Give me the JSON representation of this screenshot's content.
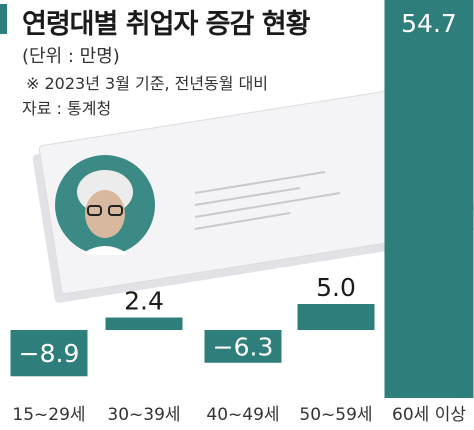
{
  "header": {
    "title": "연령대별 취업자 증감 현황",
    "unit": "(단위 : 만명)",
    "note": "※ 2023년 3월 기준, 전년동월 대비",
    "source": "자료 : 통계청"
  },
  "colors": {
    "bar": "#2e7f7b",
    "illustration_paper": "#f4f4f6",
    "illustration_avatar": "#3c8a86"
  },
  "illustration": {
    "description_icon": "resume-card-illustration"
  },
  "chart_data": {
    "type": "bar",
    "title": "연령대별 취업자 증감 현황",
    "ylabel": "(단위 : 만명)",
    "categories": [
      "15~29세",
      "30~39세",
      "40~49세",
      "50~59세",
      "60세 이상"
    ],
    "values": [
      -8.9,
      2.4,
      -6.3,
      5.0,
      54.7
    ],
    "value_labels": [
      "−8.9",
      "2.4",
      "−6.3",
      "5.0",
      "54.7"
    ],
    "grid": false,
    "legend": "none"
  }
}
